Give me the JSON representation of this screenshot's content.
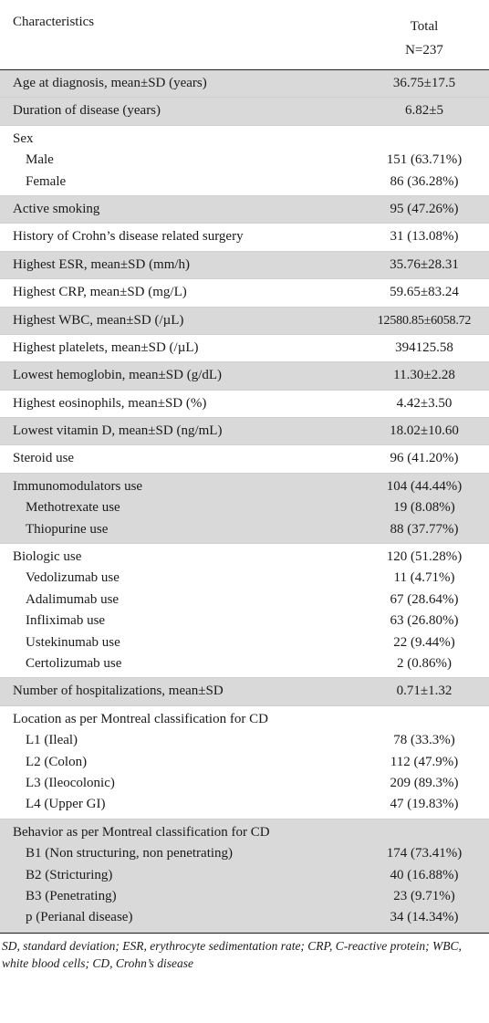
{
  "table": {
    "header": {
      "col1": "Characteristics",
      "col2_line1": "Total",
      "col2_line2": "N=237"
    },
    "groups": [
      {
        "shaded": true,
        "rows": [
          {
            "label": "Age at diagnosis, mean±SD (years)",
            "value": "36.75±17.5"
          }
        ]
      },
      {
        "shaded": true,
        "rows": [
          {
            "label": "Duration of disease (years)",
            "value": "6.82±5"
          }
        ]
      },
      {
        "shaded": false,
        "rows": [
          {
            "label": "Sex",
            "value": ""
          },
          {
            "label": "Male",
            "value": "151 (63.71%)",
            "sub": true
          },
          {
            "label": "Female",
            "value": "86 (36.28%)",
            "sub": true
          }
        ]
      },
      {
        "shaded": true,
        "rows": [
          {
            "label": "Active smoking",
            "value": "95 (47.26%)"
          }
        ]
      },
      {
        "shaded": false,
        "rows": [
          {
            "label": "History of Crohn’s disease related surgery",
            "value": "31 (13.08%)"
          }
        ]
      },
      {
        "shaded": true,
        "rows": [
          {
            "label": "Highest ESR, mean±SD (mm/h)",
            "value": "35.76±28.31"
          }
        ]
      },
      {
        "shaded": false,
        "rows": [
          {
            "label": "Highest CRP, mean±SD (mg/L)",
            "value": "59.65±83.24"
          }
        ]
      },
      {
        "shaded": true,
        "rows": [
          {
            "label": "Highest WBC, mean±SD (/µL)",
            "value": "12580.85±6058.72",
            "wide": true
          }
        ]
      },
      {
        "shaded": false,
        "rows": [
          {
            "label": "Highest platelets, mean±SD (/µL)",
            "value": "394125.58"
          }
        ]
      },
      {
        "shaded": true,
        "rows": [
          {
            "label": "Lowest hemoglobin, mean±SD (g/dL)",
            "value": "11.30±2.28"
          }
        ]
      },
      {
        "shaded": false,
        "rows": [
          {
            "label": "Highest eosinophils, mean±SD (%)",
            "value": "4.42±3.50"
          }
        ]
      },
      {
        "shaded": true,
        "rows": [
          {
            "label": "Lowest vitamin D, mean±SD (ng/mL)",
            "value": "18.02±10.60"
          }
        ]
      },
      {
        "shaded": false,
        "rows": [
          {
            "label": "Steroid use",
            "value": "96 (41.20%)"
          }
        ]
      },
      {
        "shaded": true,
        "rows": [
          {
            "label": "Immunomodulators use",
            "value": "104 (44.44%)"
          },
          {
            "label": "Methotrexate use",
            "value": "19 (8.08%)",
            "sub": true
          },
          {
            "label": "Thiopurine use",
            "value": "88 (37.77%)",
            "sub": true
          }
        ]
      },
      {
        "shaded": false,
        "rows": [
          {
            "label": "Biologic use",
            "value": "120 (51.28%)"
          },
          {
            "label": "Vedolizumab use",
            "value": "11 (4.71%)",
            "sub": true
          },
          {
            "label": "Adalimumab use",
            "value": "67 (28.64%)",
            "sub": true
          },
          {
            "label": "Infliximab use",
            "value": "63 (26.80%)",
            "sub": true
          },
          {
            "label": "Ustekinumab use",
            "value": "22 (9.44%)",
            "sub": true
          },
          {
            "label": "Certolizumab use",
            "value": "2 (0.86%)",
            "sub": true
          }
        ]
      },
      {
        "shaded": true,
        "rows": [
          {
            "label": "Number of hospitalizations, mean±SD",
            "value": "0.71±1.32"
          }
        ]
      },
      {
        "shaded": false,
        "rows": [
          {
            "label": "Location as per Montreal classification for CD",
            "value": ""
          },
          {
            "label": "L1 (Ileal)",
            "value": "78 (33.3%)",
            "sub": true
          },
          {
            "label": "L2 (Colon)",
            "value": "112 (47.9%)",
            "sub": true
          },
          {
            "label": "L3 (Ileocolonic)",
            "value": "209 (89.3%)",
            "sub": true
          },
          {
            "label": "L4 (Upper GI)",
            "value": "47 (19.83%)",
            "sub": true
          }
        ]
      },
      {
        "shaded": true,
        "rows": [
          {
            "label": "Behavior as per Montreal classification for CD",
            "value": ""
          },
          {
            "label": "B1 (Non structuring, non penetrating)",
            "value": "174 (73.41%)",
            "sub": true
          },
          {
            "label": "B2 (Stricturing)",
            "value": "40 (16.88%)",
            "sub": true
          },
          {
            "label": "B3 (Penetrating)",
            "value": "23 (9.71%)",
            "sub": true
          },
          {
            "label": "p (Perianal disease)",
            "value": "34 (14.34%)",
            "sub": true
          }
        ]
      }
    ],
    "footnote": "SD, standard deviation; ESR, erythrocyte sedimentation rate; CRP, C-reactive protein; WBC, white blood cells; CD, Crohn’s disease"
  }
}
